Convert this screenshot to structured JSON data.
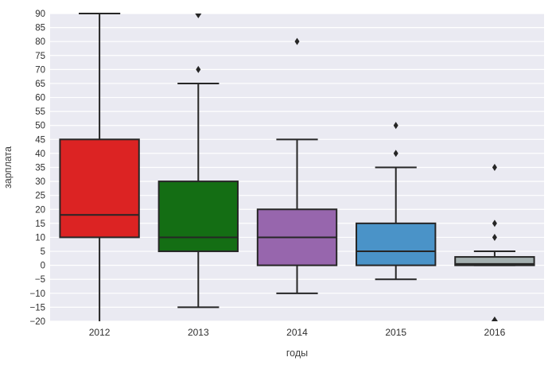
{
  "figure": {
    "background": "#ffffff",
    "plot_background": "#eaeaf2",
    "grid_color": "#ffffff",
    "edge_color": "#262626",
    "tick_text_color": "#2e2e2e",
    "axis_label_color": "#404040"
  },
  "chart_data": {
    "type": "boxplot",
    "title": "",
    "xlabel": "годы",
    "ylabel": "зарплата",
    "categories": [
      "2012",
      "2013",
      "2014",
      "2015",
      "2016"
    ],
    "ylim": [
      -20,
      90
    ],
    "ytick_step": 5,
    "yticks": [
      -20,
      -15,
      -10,
      -5,
      0,
      5,
      10,
      15,
      20,
      25,
      30,
      35,
      40,
      45,
      50,
      55,
      60,
      65,
      70,
      75,
      80,
      85,
      90
    ],
    "grid": true,
    "legend": false,
    "outlier_marker": "diamond",
    "series": [
      {
        "category": "2012",
        "color": "#dc2323",
        "whisker_low": -20,
        "whisker_low_clipped": true,
        "q1": 10,
        "median": 18,
        "q3": 45,
        "whisker_high": 90,
        "outliers": [],
        "outliers_clipped_high": [],
        "outliers_clipped_low": []
      },
      {
        "category": "2013",
        "color": "#146e14",
        "whisker_low": -15,
        "whisker_low_clipped": false,
        "q1": 5,
        "median": 10,
        "q3": 30,
        "whisker_high": 65,
        "outliers": [
          70
        ],
        "outliers_clipped_high": [
          90
        ],
        "outliers_clipped_low": []
      },
      {
        "category": "2014",
        "color": "#9766ad",
        "whisker_low": -10,
        "whisker_low_clipped": false,
        "q1": 0,
        "median": 10,
        "q3": 20,
        "whisker_high": 45,
        "outliers": [
          80
        ],
        "outliers_clipped_high": [],
        "outliers_clipped_low": []
      },
      {
        "category": "2015",
        "color": "#4a93c8",
        "whisker_low": -5,
        "whisker_low_clipped": false,
        "q1": 0,
        "median": 5,
        "q3": 15,
        "whisker_high": 35,
        "outliers": [
          40,
          50
        ],
        "outliers_clipped_high": [],
        "outliers_clipped_low": []
      },
      {
        "category": "2016",
        "color": "#a3afaf",
        "whisker_low": 0,
        "whisker_low_clipped": false,
        "q1": 0,
        "median": 0.5,
        "q3": 3,
        "whisker_high": 5,
        "outliers": [
          10,
          15,
          35
        ],
        "outliers_clipped_high": [],
        "outliers_clipped_low": [
          -20
        ]
      }
    ]
  }
}
